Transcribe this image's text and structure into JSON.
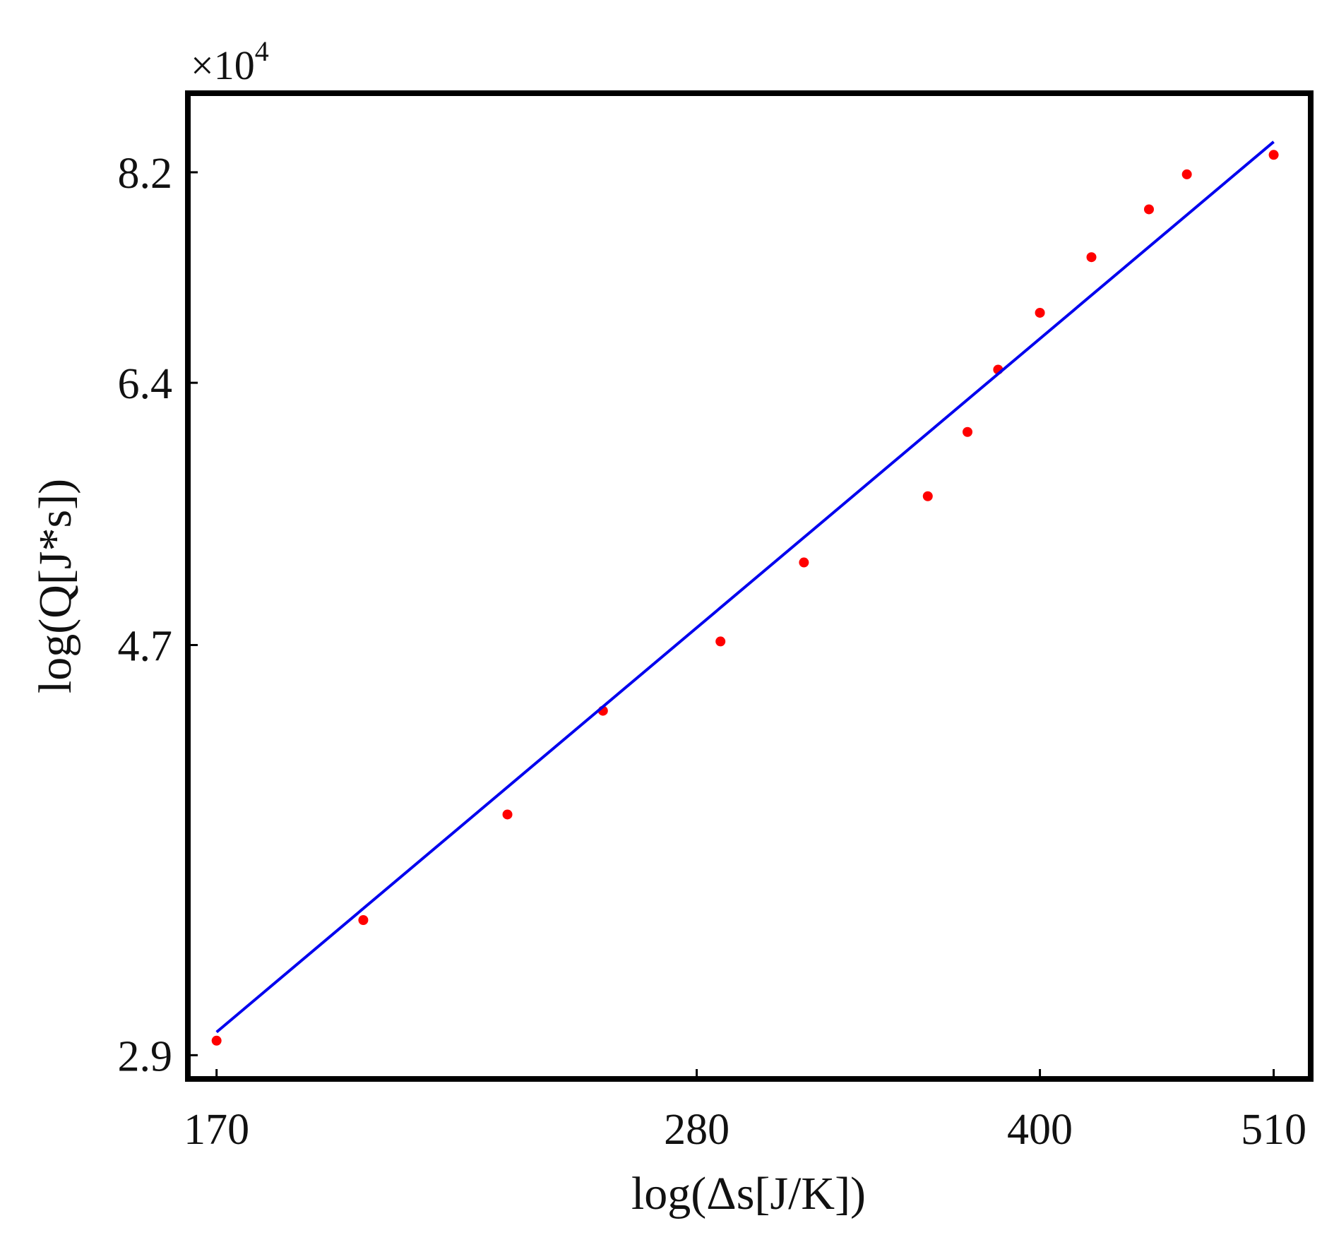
{
  "chart_data": {
    "type": "scatter",
    "title": "",
    "xlabel": "log(Δs[J/K])",
    "ylabel": "log(Q[J*s])",
    "x_scale": "log",
    "y_scale": "log",
    "xlim": [
      165,
      530
    ],
    "ylim": [
      2.82,
      9.0
    ],
    "x_ticks": [
      170,
      280,
      400,
      510
    ],
    "x_tick_labels": [
      "170",
      "280",
      "400",
      "510"
    ],
    "y_ticks": [
      2.9,
      4.7,
      6.4,
      8.2
    ],
    "y_tick_labels": [
      "2.9",
      "4.7",
      "6.4",
      "8.2"
    ],
    "y_multiplier": "×10",
    "y_multiplier_exponent": "4",
    "grid": false,
    "legend": "none",
    "series": [
      {
        "kind": "points",
        "color": "#ff0000",
        "x": [
          170,
          198,
          230,
          254,
          287,
          313,
          356,
          371,
          383,
          400,
          422,
          448,
          466,
          510
        ],
        "y": [
          2.95,
          3.4,
          3.85,
          4.35,
          4.72,
          5.18,
          5.6,
          6.04,
          6.5,
          6.95,
          7.42,
          7.85,
          8.18,
          8.37
        ]
      },
      {
        "kind": "fit-line",
        "color": "#0000ee",
        "x": [
          170,
          510
        ],
        "y": [
          2.98,
          8.5
        ]
      }
    ]
  }
}
